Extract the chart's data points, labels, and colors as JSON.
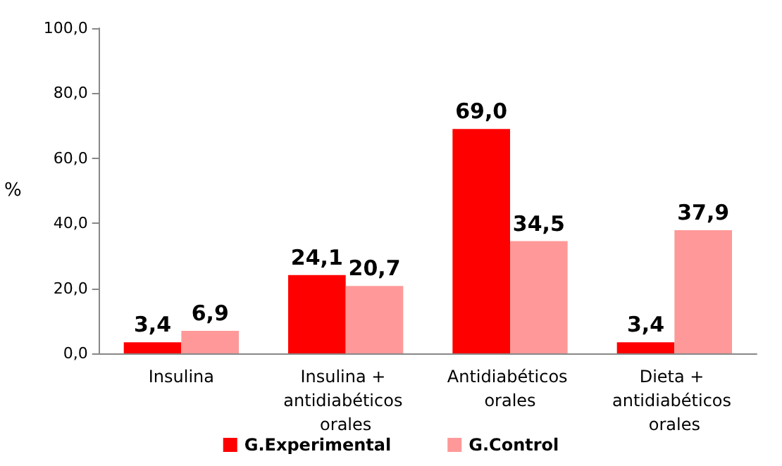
{
  "chart_data": {
    "type": "bar",
    "ylabel": "%",
    "categories": [
      "Insulina",
      "Insulina + antidiabéticos orales",
      "Antidiabéticos orales",
      "Dieta + antidiabéticos orales"
    ],
    "series": [
      {
        "name": "G.Experimental",
        "color": "#ff0000",
        "values": [
          3.4,
          24.1,
          69.0,
          3.4
        ],
        "value_labels": [
          "3,4",
          "24,1",
          "69,0",
          "3,4"
        ]
      },
      {
        "name": "G.Control",
        "color": "#ff9999",
        "values": [
          6.9,
          20.7,
          34.5,
          37.9
        ],
        "value_labels": [
          "6,9",
          "20,7",
          "34,5",
          "37,9"
        ]
      }
    ],
    "ylim": [
      0,
      100
    ],
    "yticks": [
      {
        "value": 0,
        "label": "0,0"
      },
      {
        "value": 20,
        "label": "20,0"
      },
      {
        "value": 40,
        "label": "40,0"
      },
      {
        "value": 60,
        "label": "60,0"
      },
      {
        "value": 80,
        "label": "80,0"
      },
      {
        "value": 100,
        "label": "100,0"
      }
    ],
    "grid": false,
    "legend": "bottom"
  }
}
